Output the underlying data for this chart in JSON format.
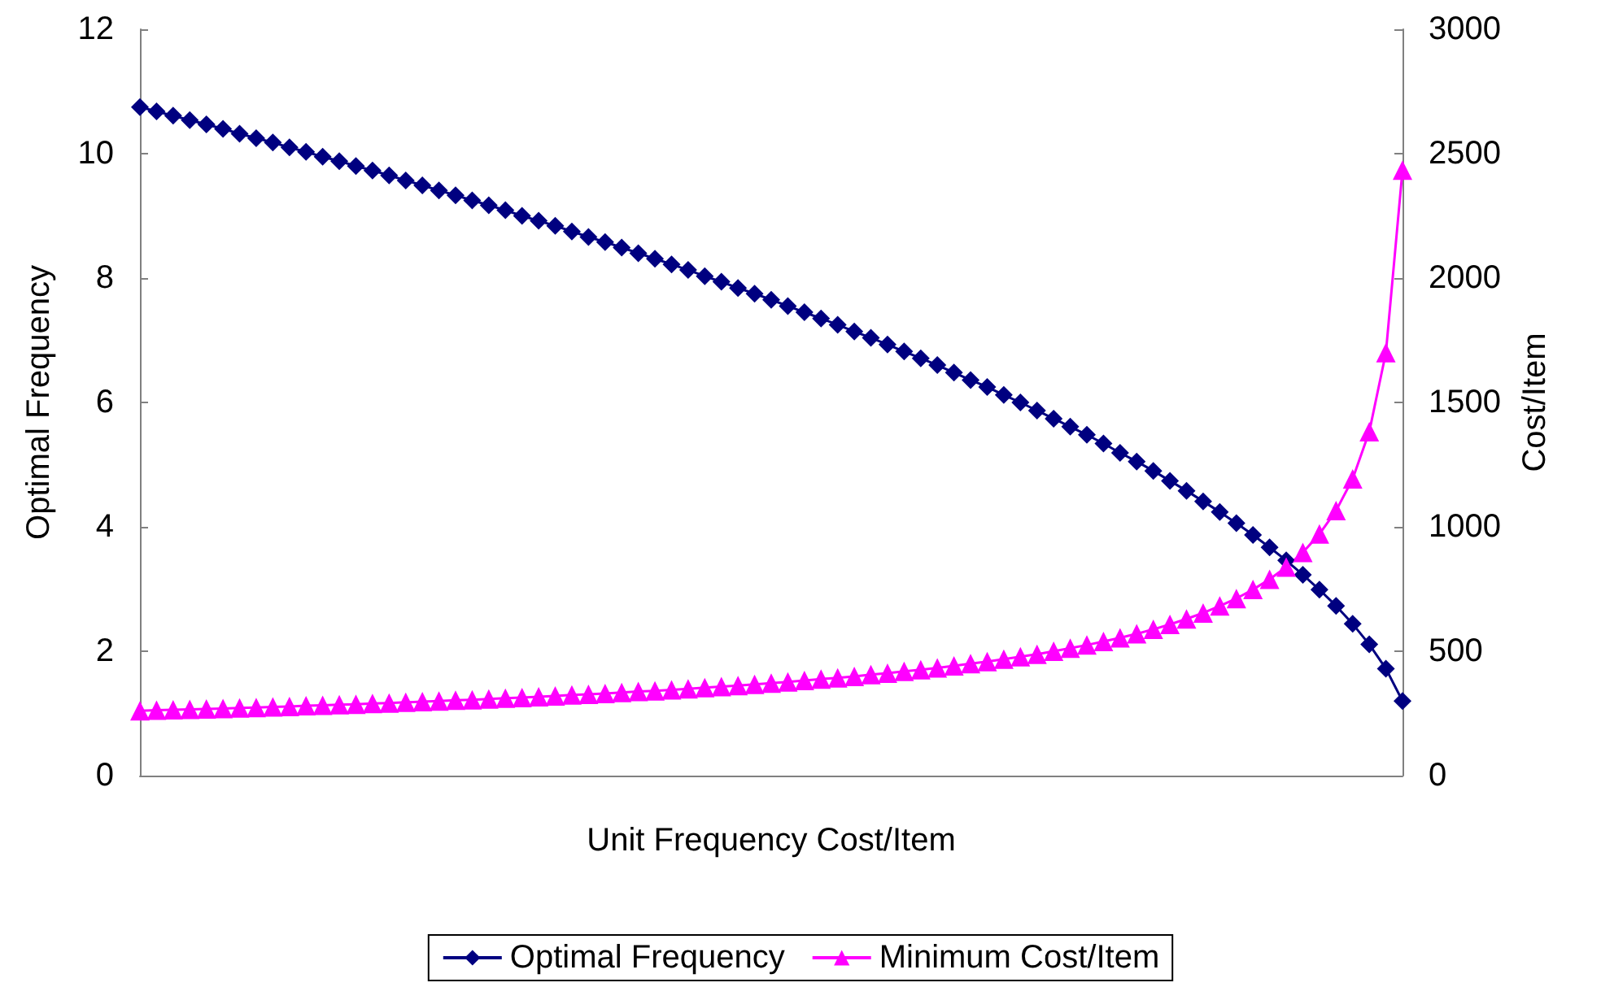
{
  "chart_data": {
    "type": "line",
    "xlabel": "Unit Frequency Cost/Item",
    "ylabel": "Optimal Frequency",
    "y2label": "Cost/Item",
    "categories": [
      null,
      null,
      null,
      null,
      null,
      null,
      null,
      null,
      null,
      null,
      null,
      null,
      null,
      null,
      null,
      null,
      null,
      null,
      null,
      null,
      null,
      null,
      null,
      null,
      null,
      null,
      null,
      null,
      null,
      null,
      null,
      null,
      null,
      null,
      null,
      null,
      null,
      null,
      null,
      null,
      null,
      null,
      null,
      null,
      null,
      null,
      null,
      null,
      null,
      null,
      null,
      null,
      null,
      null,
      null,
      null,
      null,
      null,
      null,
      null,
      null,
      null,
      null,
      null,
      null,
      null,
      null,
      null,
      null,
      null,
      null,
      null,
      null,
      null,
      null,
      null,
      null
    ],
    "series": [
      {
        "name": "Optimal Frequency",
        "color": "#000080",
        "marker": "diamond",
        "values": [
          10.75,
          10.68,
          10.61,
          10.54,
          10.47,
          10.4,
          10.32,
          10.25,
          10.18,
          10.1,
          10.03,
          9.95,
          9.88,
          9.8,
          9.73,
          9.65,
          9.57,
          9.49,
          9.41,
          9.33,
          9.25,
          9.17,
          9.09,
          9.0,
          8.92,
          8.84,
          8.75,
          8.66,
          8.58,
          8.49,
          8.4,
          8.31,
          8.22,
          8.13,
          8.03,
          7.94,
          7.84,
          7.75,
          7.65,
          7.55,
          7.45,
          7.35,
          7.25,
          7.14,
          7.04,
          6.93,
          6.82,
          6.71,
          6.6,
          6.48,
          6.36,
          6.25,
          6.12,
          6.0,
          5.87,
          5.74,
          5.61,
          5.48,
          5.34,
          5.19,
          5.05,
          4.9,
          4.74,
          4.58,
          4.41,
          4.24,
          4.06,
          3.87,
          3.67,
          3.46,
          3.23,
          2.99,
          2.73,
          2.44,
          2.11,
          1.72,
          1.2
        ]
      },
      {
        "name": "Minimum Cost/Item",
        "color": "#ff00ff",
        "marker": "triangle",
        "axis": "y2",
        "values": [
          261,
          263,
          265,
          266,
          268,
          270,
          272,
          274,
          276,
          278,
          281,
          283,
          285,
          287,
          290,
          292,
          295,
          297,
          300,
          303,
          305,
          308,
          311,
          314,
          317,
          320,
          324,
          327,
          330,
          334,
          338,
          341,
          345,
          349,
          354,
          358,
          362,
          367,
          372,
          377,
          382,
          388,
          393,
          399,
          406,
          412,
          419,
          426,
          433,
          441,
          450,
          458,
          468,
          478,
          488,
          500,
          512,
          525,
          539,
          554,
          570,
          588,
          608,
          630,
          654,
          682,
          712,
          748,
          789,
          838,
          897,
          971,
          1065,
          1193,
          1382,
          1700,
          2434
        ]
      }
    ],
    "ylim": [
      0,
      12
    ],
    "yticks": [
      0,
      2,
      4,
      6,
      8,
      10,
      12
    ],
    "y2lim": [
      0,
      3000
    ],
    "y2ticks": [
      0,
      500,
      1000,
      1500,
      2000,
      2500,
      3000
    ],
    "grid": false,
    "legend": "bottom"
  }
}
